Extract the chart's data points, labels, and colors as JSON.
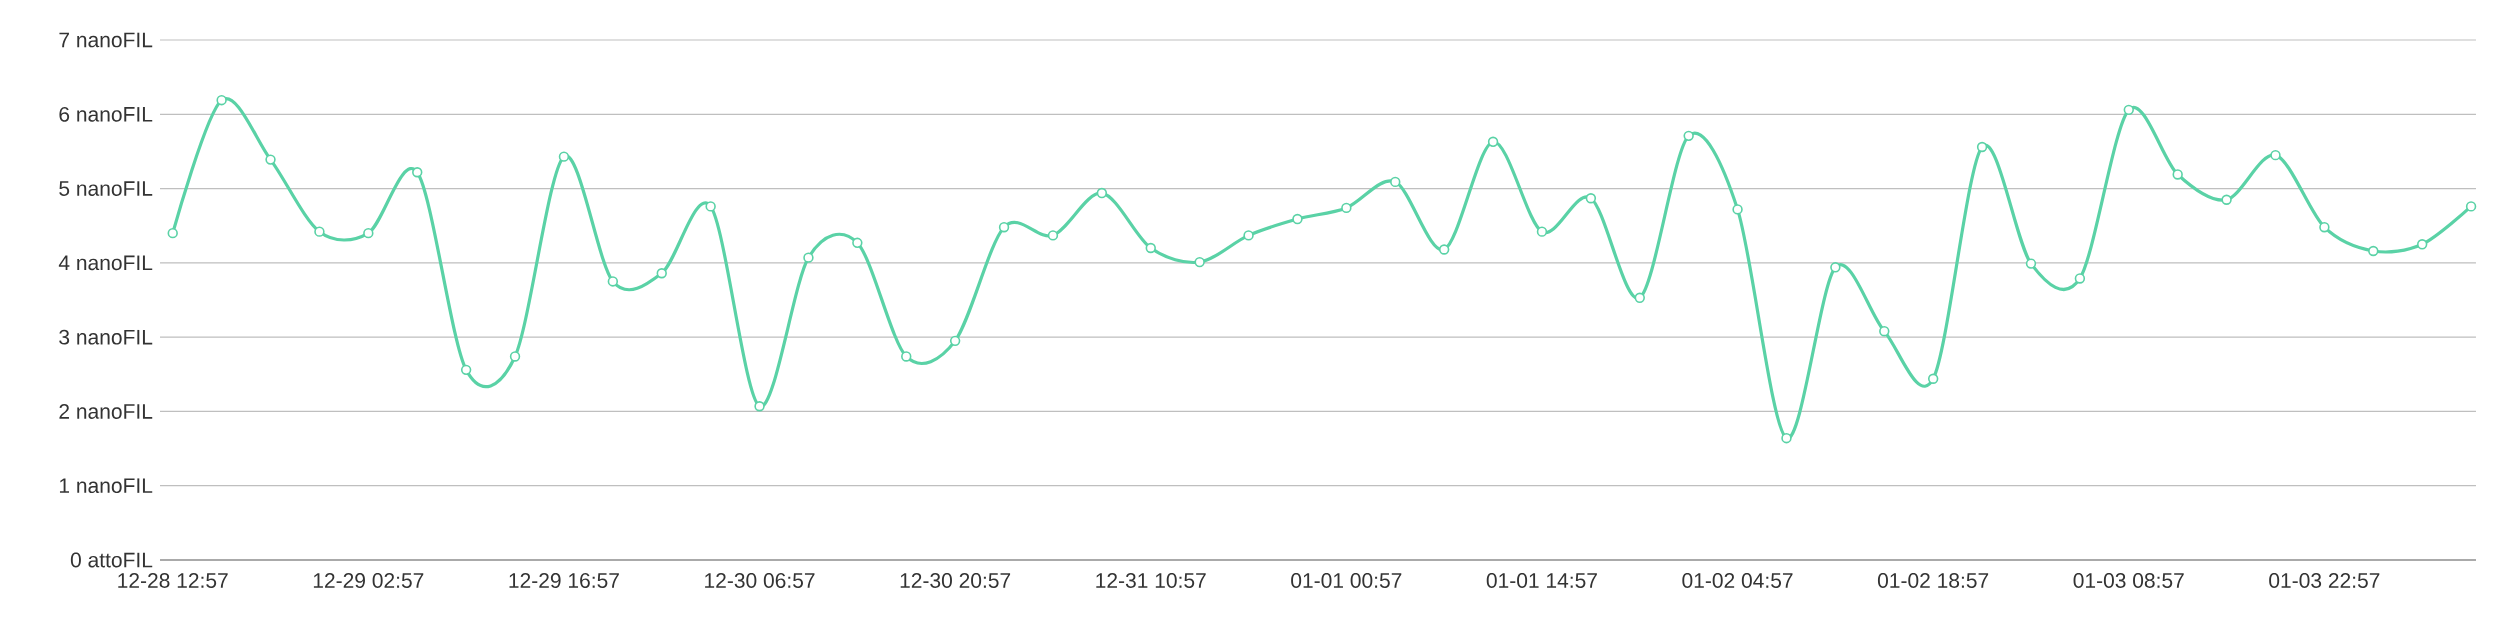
{
  "chart_data": {
    "type": "line",
    "categories": [
      "12-28 12:57",
      null,
      null,
      null,
      "12-29 02:57",
      null,
      null,
      null,
      "12-29 16:57",
      null,
      null,
      null,
      "12-30 06:57",
      null,
      null,
      null,
      "12-30 20:57",
      null,
      null,
      null,
      "12-31 10:57",
      null,
      null,
      null,
      "01-01 00:57",
      null,
      null,
      null,
      "01-01 14:57",
      null,
      null,
      null,
      "01-02 04:57",
      null,
      null,
      null,
      "01-02 18:57",
      null,
      null,
      null,
      "01-03 08:57",
      null,
      null,
      null,
      "01-03 22:57",
      null,
      null,
      null
    ],
    "series": [
      {
        "color": "#5ad2a6",
        "values": [
          4.4,
          6.19,
          5.39,
          4.42,
          4.4,
          5.22,
          2.56,
          2.74,
          5.43,
          3.75,
          3.86,
          4.76,
          2.07,
          4.07,
          4.27,
          2.74,
          2.95,
          4.48,
          4.37,
          4.94,
          4.2,
          4.01,
          4.37,
          4.59,
          4.74,
          5.09,
          4.18,
          5.63,
          4.42,
          4.87,
          3.53,
          5.71,
          4.72,
          1.64,
          3.94,
          3.08,
          2.44,
          5.56,
          3.99,
          3.79,
          6.06,
          5.19,
          4.85,
          5.45,
          4.48,
          4.16,
          4.25,
          4.76
        ]
      }
    ],
    "ylim": [
      0,
      7
    ],
    "yticks": [
      {
        "value": 0,
        "label": "0 attoFIL"
      },
      {
        "value": 1,
        "label": "1 nanoFIL"
      },
      {
        "value": 2,
        "label": "2 nanoFIL"
      },
      {
        "value": 3,
        "label": "3 nanoFIL"
      },
      {
        "value": 4,
        "label": "4 nanoFIL"
      },
      {
        "value": 5,
        "label": "5 nanoFIL"
      },
      {
        "value": 6,
        "label": "6 nanoFIL"
      },
      {
        "value": 7,
        "label": "7 nanoFIL"
      }
    ],
    "grid": "y",
    "marker": "circle",
    "line_style": "solid"
  }
}
